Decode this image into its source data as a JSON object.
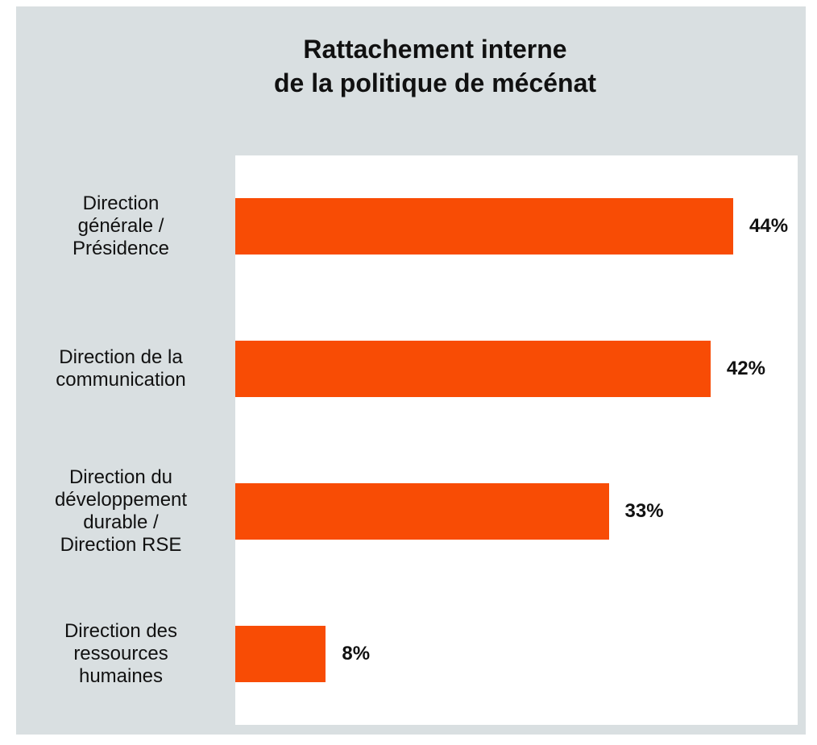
{
  "chart_data": {
    "type": "barh",
    "title": "Rattachement interne\nde la politique de mécénat",
    "categories": [
      "Direction\ngénérale /\nPrésidence",
      "Direction de la\ncommunication",
      "Direction du\ndéveloppement\ndurable /\nDirection RSE",
      "Direction des\nressources\nhumaines"
    ],
    "values": [
      44,
      42,
      33,
      8
    ],
    "value_labels": [
      "44%",
      "42%",
      "33%",
      "8%"
    ],
    "color": "#f84c05"
  }
}
